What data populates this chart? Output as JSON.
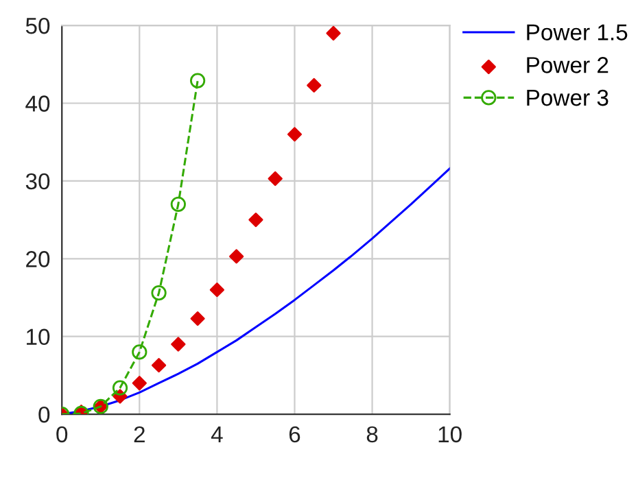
{
  "chart_data": {
    "type": "line",
    "xlim": [
      0,
      10
    ],
    "ylim": [
      0,
      50
    ],
    "xticks": [
      0,
      2,
      4,
      6,
      8,
      10
    ],
    "yticks": [
      0,
      10,
      20,
      30,
      40,
      50
    ],
    "grid": true,
    "legend": "top right",
    "series": [
      {
        "name": "Power 1.5",
        "color": "#0000ff",
        "marker": "none",
        "line_style": "solid",
        "x": [
          0,
          0.5,
          1,
          1.5,
          2,
          2.5,
          3,
          3.5,
          4,
          4.5,
          5,
          5.5,
          6,
          6.5,
          7,
          7.5,
          8,
          8.5,
          9,
          9.5,
          10
        ],
        "values": [
          0,
          0.4,
          1,
          1.8,
          2.8,
          4,
          5.2,
          6.5,
          8,
          9.5,
          11.2,
          12.9,
          14.7,
          16.6,
          18.5,
          20.5,
          22.6,
          24.8,
          27,
          29.3,
          31.6
        ]
      },
      {
        "name": "Power 2",
        "type": "scatter",
        "color": "#dd0000",
        "marker": "diamond",
        "x": [
          0,
          0.5,
          1,
          1.5,
          2,
          2.5,
          3,
          3.5,
          4,
          4.5,
          5,
          5.5,
          6,
          6.5,
          7
        ],
        "values": [
          0,
          0.3,
          1,
          2.3,
          4,
          6.3,
          9,
          12.3,
          16,
          20.3,
          25,
          30.3,
          36,
          42.3,
          49
        ]
      },
      {
        "name": "Power 3",
        "color": "#33aa00",
        "marker": "circle",
        "line_style": "dashed",
        "x": [
          0,
          0.5,
          1,
          1.5,
          2,
          2.5,
          3,
          3.5
        ],
        "values": [
          0,
          0.1,
          1,
          3.4,
          8,
          15.6,
          27,
          42.9
        ]
      }
    ]
  }
}
